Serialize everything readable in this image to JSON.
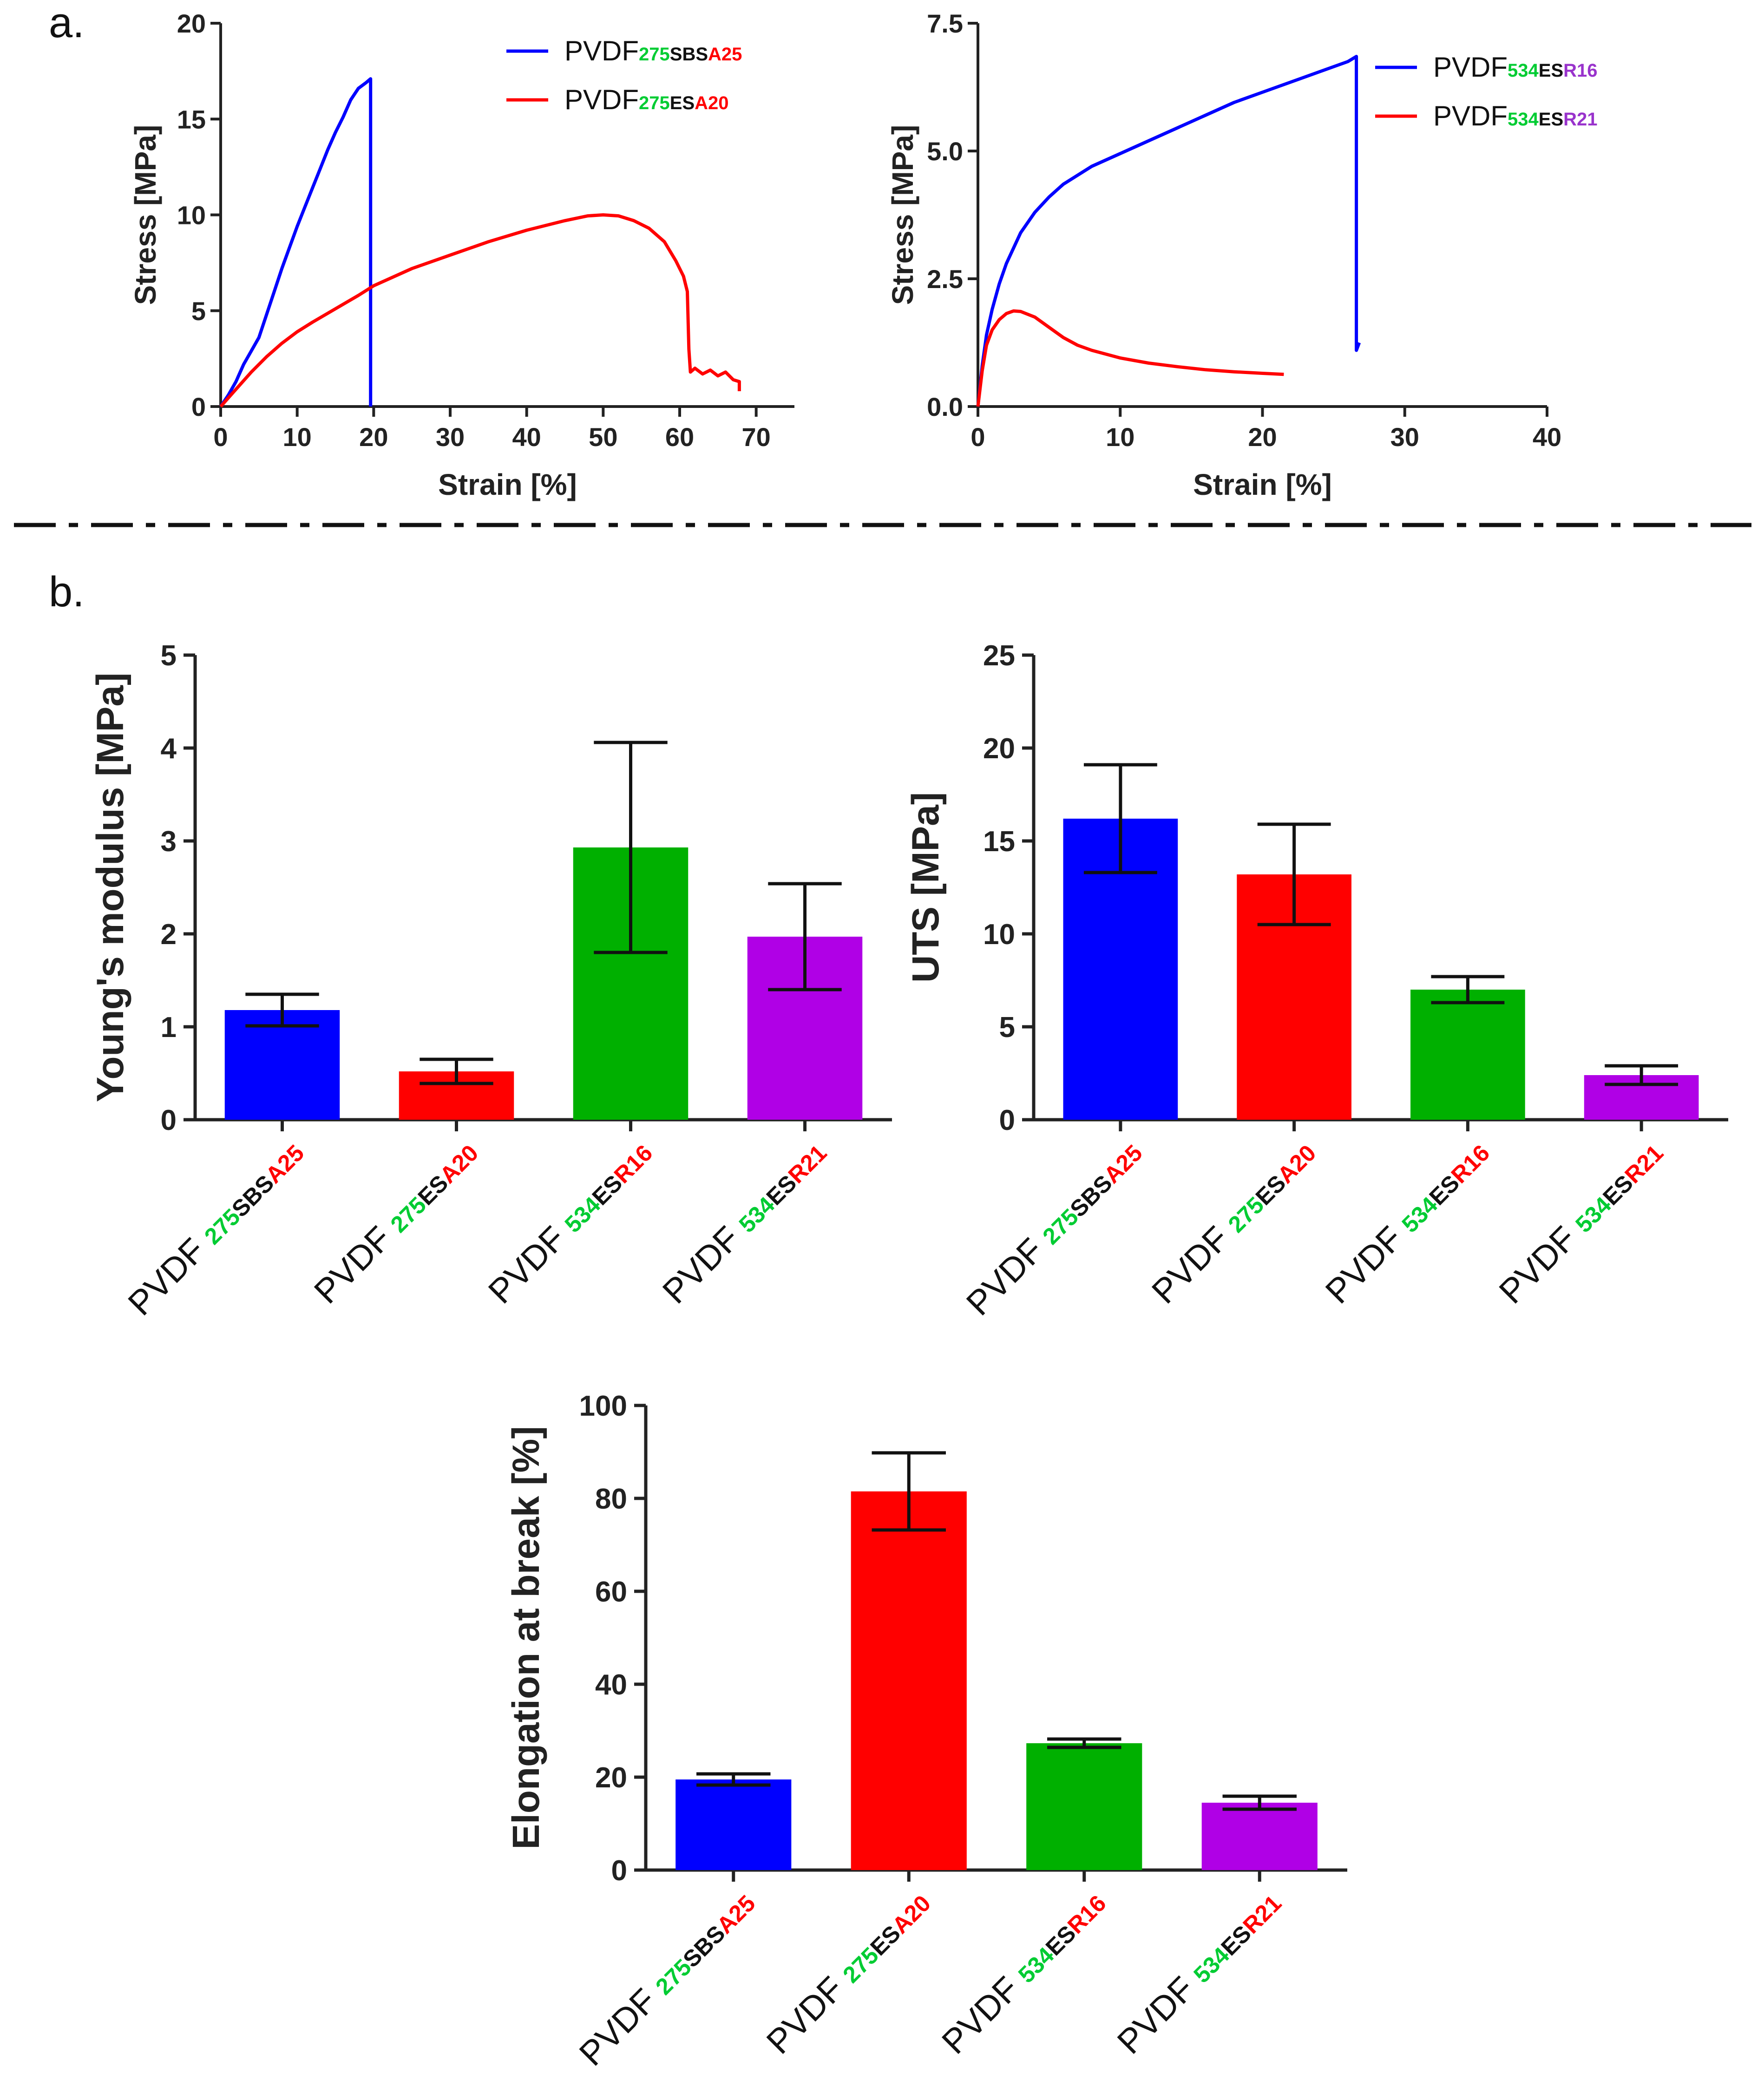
{
  "colors": {
    "blue": "#0000ff",
    "red": "#ff0000",
    "green": "#00b000",
    "purple": "#b000e6",
    "green_text": "#00cc33",
    "red_text": "#ff0000",
    "purple_text": "#9933cc",
    "axis": "#222222"
  },
  "panel_labels": {
    "a": "a.",
    "b": "b."
  },
  "chart_data": [
    {
      "id": "stress-strain-275",
      "type": "line",
      "xlabel": "Strain [%]",
      "ylabel": "Stress [MPa]",
      "xlim": [
        0,
        75
      ],
      "ylim": [
        0,
        20
      ],
      "xticks": [
        0,
        10,
        20,
        30,
        40,
        50,
        60,
        70
      ],
      "yticks": [
        0,
        5,
        10,
        15,
        20
      ],
      "legend_position": "top-right",
      "series": [
        {
          "name": "PVDF275SBSA25",
          "legend": [
            {
              "t": "PVDF",
              "c": "text"
            },
            {
              "t": "275",
              "c": "green_text",
              "sub": true
            },
            {
              "t": "SBS",
              "c": "text",
              "sub": true
            },
            {
              "t": "A25",
              "c": "red_text",
              "sub": true
            }
          ],
          "color": "blue",
          "points": [
            [
              0,
              0
            ],
            [
              1,
              0.6
            ],
            [
              2,
              1.3
            ],
            [
              3,
              2.2
            ],
            [
              4,
              2.9
            ],
            [
              5,
              3.6
            ],
            [
              6,
              4.8
            ],
            [
              7,
              6.0
            ],
            [
              8,
              7.2
            ],
            [
              9,
              8.3
            ],
            [
              10,
              9.4
            ],
            [
              11,
              10.4
            ],
            [
              12,
              11.4
            ],
            [
              13,
              12.4
            ],
            [
              14,
              13.4
            ],
            [
              15,
              14.3
            ],
            [
              16,
              15.1
            ],
            [
              17,
              16.0
            ],
            [
              18,
              16.6
            ],
            [
              19,
              16.9
            ],
            [
              19.6,
              17.1
            ],
            [
              19.6,
              0
            ]
          ]
        },
        {
          "name": "PVDF275ESA20",
          "legend": [
            {
              "t": "PVDF",
              "c": "text"
            },
            {
              "t": "275",
              "c": "green_text",
              "sub": true
            },
            {
              "t": "ES",
              "c": "text",
              "sub": true
            },
            {
              "t": "A20",
              "c": "red_text",
              "sub": true
            }
          ],
          "color": "red",
          "points": [
            [
              0,
              0
            ],
            [
              2,
              0.9
            ],
            [
              4,
              1.8
            ],
            [
              6,
              2.6
            ],
            [
              8,
              3.3
            ],
            [
              10,
              3.9
            ],
            [
              12,
              4.4
            ],
            [
              15,
              5.1
            ],
            [
              18,
              5.8
            ],
            [
              20,
              6.3
            ],
            [
              25,
              7.2
            ],
            [
              30,
              7.9
            ],
            [
              35,
              8.6
            ],
            [
              40,
              9.2
            ],
            [
              45,
              9.7
            ],
            [
              48,
              9.95
            ],
            [
              50,
              10.0
            ],
            [
              52,
              9.95
            ],
            [
              54,
              9.7
            ],
            [
              56,
              9.3
            ],
            [
              58,
              8.6
            ],
            [
              59.5,
              7.6
            ],
            [
              60.5,
              6.8
            ],
            [
              61,
              6.0
            ],
            [
              61.2,
              3.0
            ],
            [
              61.4,
              1.8
            ],
            [
              62,
              2.0
            ],
            [
              63,
              1.7
            ],
            [
              64,
              1.9
            ],
            [
              65,
              1.6
            ],
            [
              66,
              1.8
            ],
            [
              67,
              1.4
            ],
            [
              67.8,
              1.3
            ],
            [
              67.8,
              0.8
            ]
          ]
        }
      ]
    },
    {
      "id": "stress-strain-534",
      "type": "line",
      "xlabel": "Strain [%]",
      "ylabel": "Stress [MPa]",
      "xlim": [
        0,
        40
      ],
      "ylim": [
        0,
        7.5
      ],
      "xticks": [
        0,
        10,
        20,
        30,
        40
      ],
      "yticks": [
        0.0,
        2.5,
        5.0,
        7.5
      ],
      "ytick_labels": [
        "0.0",
        "2.5",
        "5.0",
        "7.5"
      ],
      "legend_position": "top-right",
      "series": [
        {
          "name": "PVDF534ESR16",
          "legend": [
            {
              "t": "PVDF",
              "c": "text"
            },
            {
              "t": "534",
              "c": "green_text",
              "sub": true
            },
            {
              "t": "ES",
              "c": "text",
              "sub": true
            },
            {
              "t": "R16",
              "c": "purple_text",
              "sub": true
            }
          ],
          "color": "blue",
          "points": [
            [
              0,
              0
            ],
            [
              0.3,
              0.8
            ],
            [
              0.6,
              1.4
            ],
            [
              1,
              1.9
            ],
            [
              1.5,
              2.4
            ],
            [
              2,
              2.8
            ],
            [
              3,
              3.4
            ],
            [
              4,
              3.8
            ],
            [
              5,
              4.1
            ],
            [
              6,
              4.35
            ],
            [
              8,
              4.7
            ],
            [
              10,
              4.95
            ],
            [
              12,
              5.2
            ],
            [
              14,
              5.45
            ],
            [
              16,
              5.7
            ],
            [
              18,
              5.95
            ],
            [
              20,
              6.15
            ],
            [
              22,
              6.35
            ],
            [
              24,
              6.55
            ],
            [
              26,
              6.75
            ],
            [
              26.6,
              6.85
            ],
            [
              26.6,
              1.1
            ],
            [
              26.8,
              1.25
            ]
          ]
        },
        {
          "name": "PVDF534ESR21",
          "legend": [
            {
              "t": "PVDF",
              "c": "text"
            },
            {
              "t": "534",
              "c": "green_text",
              "sub": true
            },
            {
              "t": "ES",
              "c": "text",
              "sub": true
            },
            {
              "t": "R21",
              "c": "purple_text",
              "sub": true
            }
          ],
          "color": "red",
          "points": [
            [
              0,
              0
            ],
            [
              0.3,
              0.7
            ],
            [
              0.6,
              1.2
            ],
            [
              1,
              1.5
            ],
            [
              1.5,
              1.7
            ],
            [
              2,
              1.82
            ],
            [
              2.5,
              1.87
            ],
            [
              3,
              1.86
            ],
            [
              4,
              1.75
            ],
            [
              5,
              1.55
            ],
            [
              6,
              1.35
            ],
            [
              7,
              1.2
            ],
            [
              8,
              1.1
            ],
            [
              10,
              0.95
            ],
            [
              12,
              0.85
            ],
            [
              14,
              0.78
            ],
            [
              16,
              0.72
            ],
            [
              18,
              0.68
            ],
            [
              20,
              0.65
            ],
            [
              21.5,
              0.63
            ]
          ]
        }
      ]
    },
    {
      "id": "youngs-modulus",
      "type": "bar",
      "ylabel": "Young's modulus [MPa]",
      "ylim": [
        0,
        5
      ],
      "yticks": [
        0,
        1,
        2,
        3,
        4,
        5
      ],
      "categories": [
        "PVDF275SBSA25",
        "PVDF275ESA20",
        "PVDF534ESR16",
        "PVDF534ESR21"
      ],
      "values": [
        1.18,
        0.52,
        2.93,
        1.97
      ],
      "errors": [
        0.17,
        0.13,
        1.13,
        0.57
      ],
      "colors": [
        "blue",
        "red",
        "green",
        "purple"
      ]
    },
    {
      "id": "uts",
      "type": "bar",
      "ylabel": "UTS [MPa]",
      "ylim": [
        0,
        25
      ],
      "yticks": [
        0,
        5,
        10,
        15,
        20,
        25
      ],
      "categories": [
        "PVDF275SBSA25",
        "PVDF275ESA20",
        "PVDF534ESR16",
        "PVDF534ESR21"
      ],
      "values": [
        16.2,
        13.2,
        7.0,
        2.4
      ],
      "errors": [
        2.9,
        2.7,
        0.7,
        0.5
      ],
      "colors": [
        "blue",
        "red",
        "green",
        "purple"
      ]
    },
    {
      "id": "elongation",
      "type": "bar",
      "ylabel": "Elongation at break [%]",
      "ylim": [
        0,
        100
      ],
      "yticks": [
        0,
        20,
        40,
        60,
        80,
        100
      ],
      "categories": [
        "PVDF275SBSA25",
        "PVDF275ESA20",
        "PVDF534ESR16",
        "PVDF534ESR21"
      ],
      "values": [
        19.5,
        81.5,
        27.3,
        14.5
      ],
      "errors": [
        1.2,
        8.3,
        0.9,
        1.4
      ],
      "colors": [
        "blue",
        "red",
        "green",
        "purple"
      ]
    }
  ],
  "category_labels": [
    [
      {
        "t": "PVDF ",
        "c": "text"
      },
      {
        "t": "275",
        "c": "green_text",
        "sub": true
      },
      {
        "t": "SBS",
        "c": "text",
        "sub": true
      },
      {
        "t": "A25",
        "c": "red_text",
        "sub": true
      }
    ],
    [
      {
        "t": "PVDF ",
        "c": "text"
      },
      {
        "t": "275",
        "c": "green_text",
        "sub": true
      },
      {
        "t": "ES",
        "c": "text",
        "sub": true
      },
      {
        "t": "A20",
        "c": "red_text",
        "sub": true
      }
    ],
    [
      {
        "t": "PVDF ",
        "c": "text"
      },
      {
        "t": "534",
        "c": "green_text",
        "sub": true
      },
      {
        "t": "ES",
        "c": "text",
        "sub": true
      },
      {
        "t": "R16",
        "c": "red_text",
        "sub": true
      }
    ],
    [
      {
        "t": "PVDF ",
        "c": "text"
      },
      {
        "t": "534",
        "c": "green_text",
        "sub": true
      },
      {
        "t": "ES",
        "c": "text",
        "sub": true
      },
      {
        "t": "R21",
        "c": "red_text",
        "sub": true
      }
    ]
  ]
}
